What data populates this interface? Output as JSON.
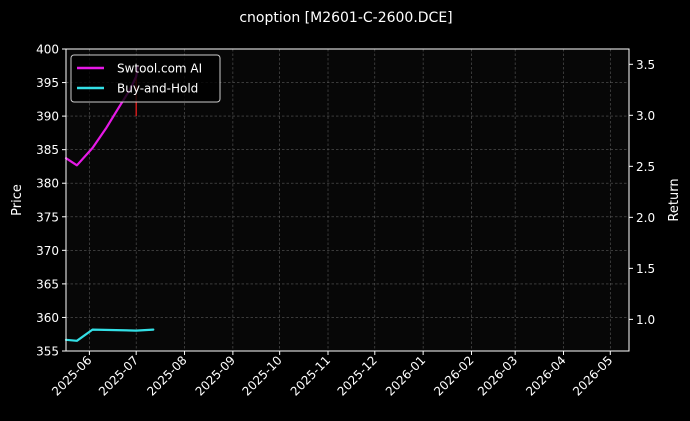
{
  "chart_data": {
    "type": "line",
    "title": "cnoption [M2601-C-2600.DCE]",
    "ylabel": "Price",
    "y2label": "Return",
    "ylim": [
      355,
      400
    ],
    "y2lim": [
      0.69,
      3.65
    ],
    "xlim": [
      "2025-05-17",
      "2026-05-13"
    ],
    "yticks": [
      355,
      360,
      365,
      370,
      375,
      380,
      385,
      390,
      395,
      400
    ],
    "y2ticks": [
      1.0,
      1.5,
      2.0,
      2.5,
      3.0,
      3.5
    ],
    "y2tick_labels": [
      "1.0",
      "1.5",
      "2.0",
      "2.5",
      "3.0",
      "3.5"
    ],
    "xticks": [
      "2025-06-01",
      "2025-07-01",
      "2025-08-01",
      "2025-09-01",
      "2025-10-01",
      "2025-11-01",
      "2025-12-01",
      "2026-01-01",
      "2026-02-01",
      "2026-03-01",
      "2026-04-01",
      "2026-05-01"
    ],
    "xtick_labels": [
      "2025-06",
      "2025-07",
      "2025-08",
      "2025-09",
      "2025-10",
      "2025-11",
      "2025-12",
      "2026-01",
      "2026-02",
      "2026-03",
      "2026-04",
      "2026-05"
    ],
    "grid": true,
    "legend_position": "top-left",
    "series": [
      {
        "name": "Swtool.com AI",
        "axis": "right",
        "color": "#e619e6",
        "points": [
          [
            "2025-05-17",
            2.58
          ],
          [
            "2025-05-24",
            2.51
          ],
          [
            "2025-06-03",
            2.68
          ],
          [
            "2025-06-12",
            2.88
          ],
          [
            "2025-06-20",
            3.08
          ],
          [
            "2025-06-27",
            3.25
          ],
          [
            "2025-07-01",
            3.38
          ],
          [
            "2025-07-02",
            3.48
          ]
        ]
      },
      {
        "name": "Buy-and-Hold",
        "axis": "right",
        "color": "#33e0e6",
        "points": [
          [
            "2025-05-17",
            0.8
          ],
          [
            "2025-05-24",
            0.79
          ],
          [
            "2025-06-03",
            0.9
          ],
          [
            "2025-07-01",
            0.89
          ],
          [
            "2025-07-12",
            0.9
          ]
        ]
      }
    ],
    "annotations": [
      {
        "type": "price-bar",
        "color": "#ff2020",
        "x": "2025-07-01",
        "low": 390.0,
        "high": 397.5
      }
    ]
  }
}
